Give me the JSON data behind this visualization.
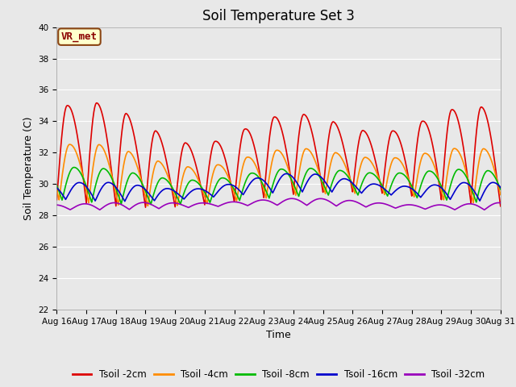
{
  "title": "Soil Temperature Set 3",
  "xlabel": "Time",
  "ylabel": "Soil Temperature (C)",
  "ylim": [
    22,
    40
  ],
  "n_days": 15,
  "x_tick_labels": [
    "Aug 16",
    "Aug 17",
    "Aug 18",
    "Aug 19",
    "Aug 20",
    "Aug 21",
    "Aug 22",
    "Aug 23",
    "Aug 24",
    "Aug 25",
    "Aug 26",
    "Aug 27",
    "Aug 28",
    "Aug 29",
    "Aug 30",
    "Aug 31"
  ],
  "annotation_text": "VR_met",
  "annotation_box_color": "#FFFFCC",
  "annotation_border_color": "#8B4513",
  "annotation_text_color": "#8B0000",
  "colors": {
    "Tsoil -2cm": "#DD0000",
    "Tsoil -4cm": "#FF8C00",
    "Tsoil -8cm": "#00BB00",
    "Tsoil -16cm": "#0000CC",
    "Tsoil -32cm": "#9900BB"
  },
  "background_color": "#E8E8E8",
  "grid_color": "#FFFFFF",
  "title_fontsize": 12,
  "axis_label_fontsize": 9,
  "tick_fontsize": 7.5,
  "legend_fontsize": 8.5
}
